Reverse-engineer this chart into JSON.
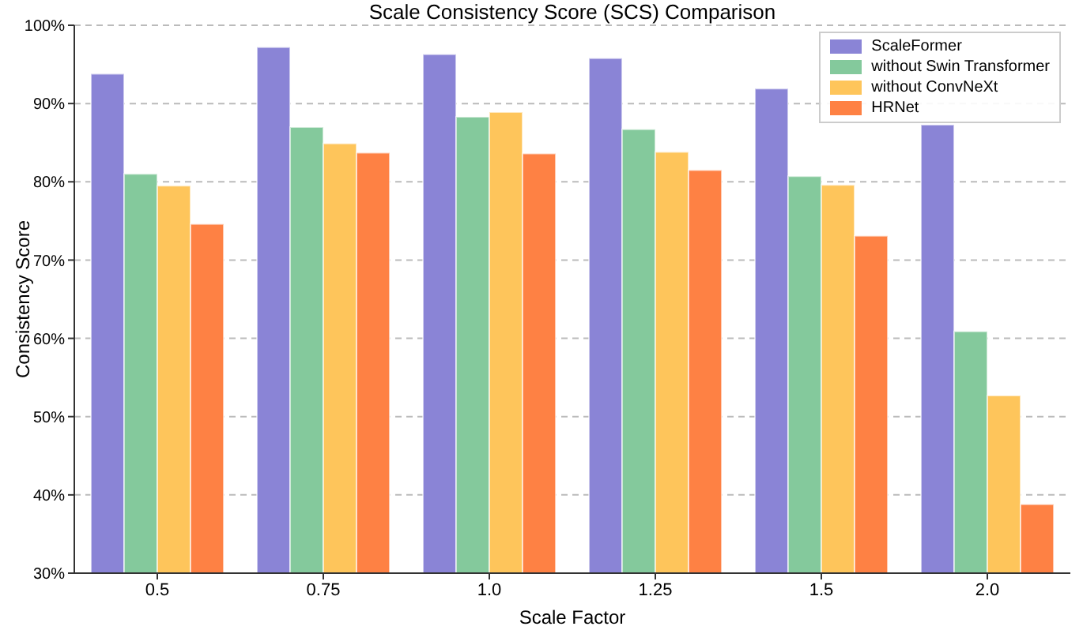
{
  "chart_data": {
    "type": "bar",
    "title": "Scale Consistency Score (SCS) Comparison",
    "xlabel": "Scale Factor",
    "ylabel": "Consistency Score",
    "categories": [
      "0.5",
      "0.75",
      "1.0",
      "1.25",
      "1.5",
      "2.0"
    ],
    "series": [
      {
        "name": "ScaleFormer",
        "color": "#8a84d6",
        "values": [
          93.8,
          97.2,
          96.3,
          95.8,
          91.9,
          87.3
        ]
      },
      {
        "name": "without Swin Transformer",
        "color": "#84c99c",
        "values": [
          81.0,
          87.0,
          88.3,
          86.7,
          80.7,
          60.9
        ]
      },
      {
        "name": "without ConvNeXt",
        "color": "#fec55b",
        "values": [
          79.5,
          84.9,
          88.9,
          83.8,
          79.6,
          52.7
        ]
      },
      {
        "name": "HRNet",
        "color": "#fe8144",
        "values": [
          74.6,
          83.7,
          83.6,
          81.5,
          73.1,
          38.8
        ]
      }
    ],
    "ylim": [
      30,
      100
    ],
    "yticks": [
      {
        "value": 30,
        "label": "30%"
      },
      {
        "value": 40,
        "label": "40%"
      },
      {
        "value": 50,
        "label": "50%"
      },
      {
        "value": 60,
        "label": "60%"
      },
      {
        "value": 70,
        "label": "70%"
      },
      {
        "value": 80,
        "label": "80%"
      },
      {
        "value": 90,
        "label": "90%"
      },
      {
        "value": 100,
        "label": "100%"
      }
    ],
    "grid": "y",
    "legend": "top right"
  }
}
